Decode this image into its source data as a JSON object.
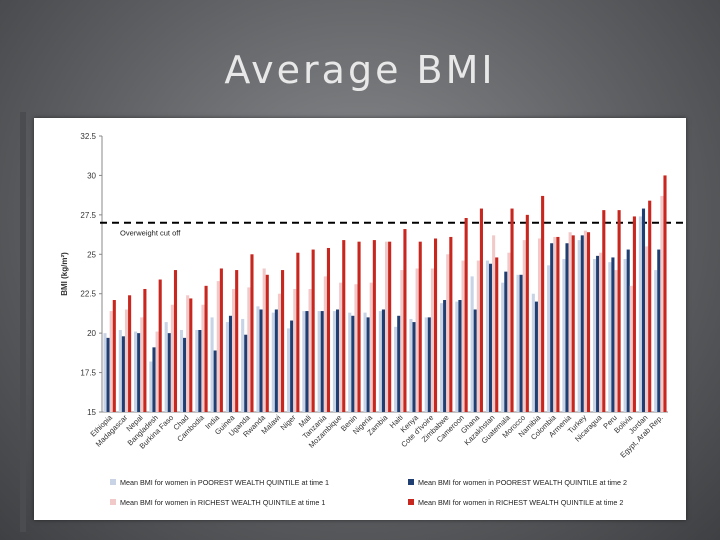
{
  "slide": {
    "title": "Average BMI"
  },
  "chart_data": {
    "type": "bar",
    "title": "",
    "xlabel": "",
    "ylabel": "BMI (kg/m²)",
    "ylim": [
      15,
      32.5
    ],
    "yticks": [
      "15",
      "17.5",
      "20",
      "22.5",
      "25",
      "27.5",
      "30",
      "32.5"
    ],
    "grid": false,
    "legend_position": "bottom",
    "annotation": {
      "label": "Overweight cut off",
      "value": 27
    },
    "categories": [
      "Ethiopia",
      "Madagascar",
      "Nepal",
      "Bangladesh",
      "Burkina Faso",
      "Chad",
      "Cambodia",
      "India",
      "Guinea",
      "Uganda",
      "Rwanda",
      "Malawi",
      "Niger",
      "Mali",
      "Tanzania",
      "Mozambique",
      "Benin",
      "Nigeria",
      "Zambia",
      "Haiti",
      "Kenya",
      "Cote d'Ivoire",
      "Zimbabwe",
      "Cameroon",
      "Ghana",
      "Kazakhstan",
      "Guatemala",
      "Morocco",
      "Namibia",
      "Colombia",
      "Armenia",
      "Turkey",
      "Nicaragua",
      "Peru",
      "Bolivia",
      "Jordan",
      "Egypt, Arab Rep."
    ],
    "series": [
      {
        "name": "Mean BMI for women in POOREST WEALTH QUINTILE at time 1",
        "color": "#c9d3e6",
        "values": [
          20.0,
          20.2,
          20.1,
          18.2,
          20.7,
          20.2,
          20.2,
          21.0,
          20.7,
          20.9,
          21.7,
          21.3,
          20.3,
          21.4,
          21.4,
          21.4,
          21.3,
          21.3,
          21.4,
          20.4,
          20.9,
          21.0,
          21.9,
          22.0,
          23.6,
          24.6,
          23.2,
          23.7,
          22.5,
          24.3,
          24.7,
          25.9,
          24.7,
          24.5,
          24.7,
          27.4,
          24.0
        ]
      },
      {
        "name": "Mean BMI for women in POOREST WEALTH QUINTILE at time 2",
        "color": "#1f3f73",
        "values": [
          19.7,
          19.8,
          20.0,
          19.1,
          20.0,
          19.7,
          20.2,
          18.9,
          21.1,
          19.9,
          21.5,
          21.5,
          20.8,
          21.4,
          21.4,
          21.5,
          21.1,
          21.0,
          21.5,
          21.1,
          20.7,
          21.0,
          22.1,
          22.1,
          21.5,
          24.4,
          23.9,
          23.7,
          22.0,
          25.7,
          25.7,
          26.2,
          24.9,
          24.8,
          25.3,
          27.9,
          25.3
        ]
      },
      {
        "name": "Mean BMI for women in RICHEST WEALTH QUINTILE at time 1",
        "color": "#f2c9c9",
        "values": [
          21.4,
          21.5,
          21.0,
          20.1,
          21.8,
          22.4,
          21.8,
          23.3,
          22.8,
          22.9,
          24.1,
          22.5,
          22.8,
          22.8,
          23.6,
          23.2,
          23.1,
          23.2,
          25.8,
          24.0,
          24.1,
          24.1,
          25.0,
          24.6,
          24.6,
          26.2,
          25.1,
          25.9,
          26.0,
          26.1,
          26.4,
          26.5,
          25.1,
          24.0,
          23.0,
          25.5,
          28.7
        ]
      },
      {
        "name": "Mean BMI for women in RICHEST WEALTH QUINTILE at time 2",
        "color": "#c8271f",
        "values": [
          22.1,
          22.4,
          22.8,
          23.4,
          24.0,
          22.2,
          23.0,
          24.1,
          24.0,
          25.0,
          23.7,
          24.0,
          25.1,
          25.3,
          25.4,
          25.9,
          25.8,
          25.9,
          25.8,
          26.6,
          25.8,
          26.0,
          26.1,
          27.3,
          27.9,
          24.8,
          27.9,
          27.5,
          28.7,
          26.1,
          26.2,
          26.4,
          27.8,
          27.8,
          27.4,
          28.4,
          30.0
        ]
      }
    ]
  }
}
